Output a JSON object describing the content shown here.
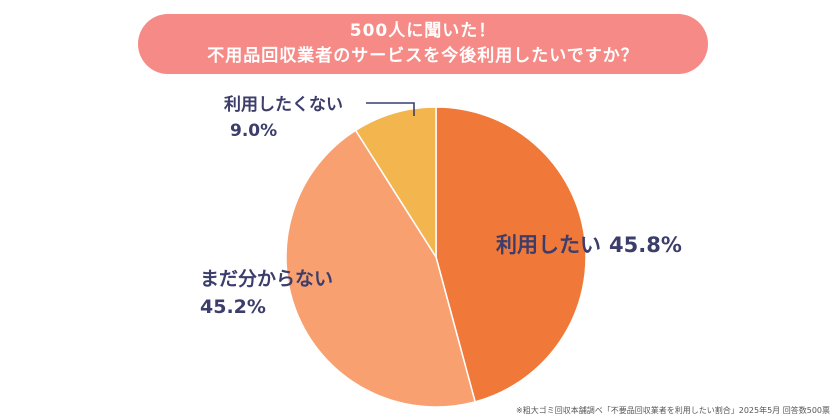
{
  "title": {
    "line1": "500人に聞いた！",
    "line2": "不用品回収業者のサービスを今後利用したいですか？"
  },
  "source": "※粗大ゴミ回収本舗調べ「不要品回収業者を利用したい割合」2025年5月 回答数500票",
  "colors": {
    "banner": "#f58a86",
    "label_text": "#3c3d6b"
  },
  "chart_data": {
    "type": "pie",
    "title": "500人に聞いた！ 不用品回収業者のサービスを今後利用したいですか？",
    "unit": "%",
    "slices": [
      {
        "label": "利用したい",
        "value": 45.8,
        "value_text": "45.8%",
        "color": "#f07838"
      },
      {
        "label": "まだ分からない",
        "value": 45.2,
        "value_text": "45.2%",
        "color": "#f9a070"
      },
      {
        "label": "利用したくない",
        "value": 9.0,
        "value_text": "9.0%",
        "color": "#f3b54e"
      }
    ]
  }
}
